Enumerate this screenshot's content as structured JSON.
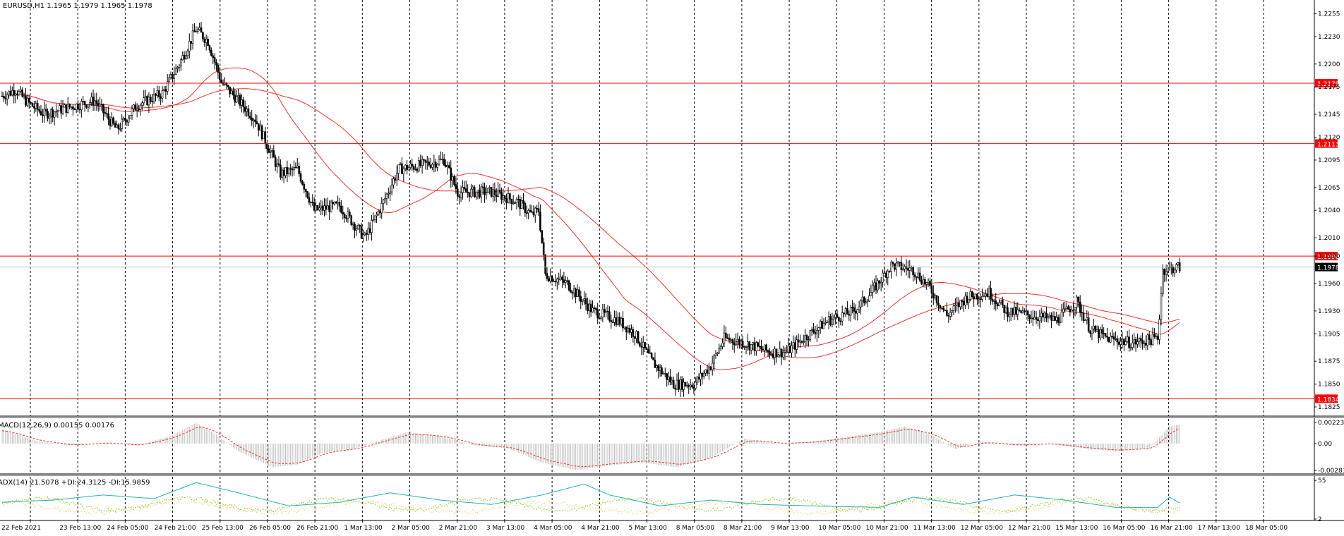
{
  "header": {
    "main": "EURUSD,H1  1.1965 1.1979 1.1965 1.1978",
    "macd": "MACD(12,26,9) 0.00155 0.00176",
    "adx": "ADX(14) 21.5078 +DI:24.3125 -DI:15.9859"
  },
  "colors": {
    "background": "#ffffff",
    "candle": "#000000",
    "level_line": "#ff0000",
    "ma": "#e8342e",
    "macd_hist": "#c0c0c0",
    "macd_signal": "#e8342e",
    "adx": "#20b2aa",
    "plus_di": "#9acd32",
    "minus_di": "#f0c040",
    "grid": "#000000",
    "axis": "#000000"
  },
  "chart_data": [
    {
      "type": "candlestick",
      "symbol": "EURUSD",
      "timeframe": "H1",
      "ylim": [
        1.1815,
        1.227
      ],
      "yticks": [
        "1.2255",
        "1.2230",
        "1.2200",
        "1.2175",
        "1.2145",
        "1.2120",
        "1.2095",
        "1.2065",
        "1.2040",
        "1.2010",
        "1.1990",
        "1.1960",
        "1.1930",
        "1.1905",
        "1.1875",
        "1.1850",
        "1.1825"
      ],
      "x_labels": [
        "22 Feb 2021",
        "23 Feb 13:00",
        "24 Feb 05:00",
        "24 Feb 21:00",
        "25 Feb 13:00",
        "26 Feb 05:00",
        "26 Feb 21:00",
        "1 Mar 13:00",
        "2 Mar 05:00",
        "2 Mar 21:00",
        "3 Mar 13:00",
        "4 Mar 05:00",
        "4 Mar 21:00",
        "5 Mar 13:00",
        "8 Mar 05:00",
        "8 Mar 21:00",
        "9 Mar 13:00",
        "10 Mar 05:00",
        "10 Mar 21:00",
        "11 Mar 13:00",
        "12 Mar 05:00",
        "12 Mar 21:00",
        "15 Mar 13:00",
        "16 Mar 05:00",
        "16 Mar 21:00",
        "17 Mar 13:00",
        "18 Mar 05:00"
      ],
      "price_anchors": [
        [
          0,
          1.2165
        ],
        [
          8,
          1.2172
        ],
        [
          15,
          1.2158
        ],
        [
          25,
          1.2145
        ],
        [
          40,
          1.2153
        ],
        [
          55,
          1.216
        ],
        [
          68,
          1.2128
        ],
        [
          80,
          1.2155
        ],
        [
          95,
          1.2168
        ],
        [
          105,
          1.22
        ],
        [
          115,
          1.2238
        ],
        [
          122,
          1.2225
        ],
        [
          130,
          1.218
        ],
        [
          140,
          1.216
        ],
        [
          150,
          1.214
        ],
        [
          165,
          1.208
        ],
        [
          175,
          1.2085
        ],
        [
          185,
          1.204
        ],
        [
          200,
          1.2045
        ],
        [
          215,
          1.201
        ],
        [
          225,
          1.2045
        ],
        [
          235,
          1.2085
        ],
        [
          250,
          1.209
        ],
        [
          262,
          1.2095
        ],
        [
          270,
          1.206
        ],
        [
          290,
          1.206
        ],
        [
          305,
          1.205
        ],
        [
          314,
          1.2035
        ],
        [
          318,
          1.204
        ],
        [
          322,
          1.197
        ],
        [
          335,
          1.196
        ],
        [
          350,
          1.193
        ],
        [
          365,
          1.192
        ],
        [
          375,
          1.1905
        ],
        [
          385,
          1.1875
        ],
        [
          398,
          1.185
        ],
        [
          410,
          1.185
        ],
        [
          420,
          1.187
        ],
        [
          428,
          1.19
        ],
        [
          440,
          1.1895
        ],
        [
          455,
          1.1885
        ],
        [
          465,
          1.1885
        ],
        [
          475,
          1.19
        ],
        [
          490,
          1.192
        ],
        [
          505,
          1.193
        ],
        [
          515,
          1.195
        ],
        [
          527,
          1.198
        ],
        [
          540,
          1.1975
        ],
        [
          550,
          1.1955
        ],
        [
          560,
          1.1925
        ],
        [
          572,
          1.1945
        ],
        [
          585,
          1.195
        ],
        [
          595,
          1.193
        ],
        [
          610,
          1.1925
        ],
        [
          625,
          1.192
        ],
        [
          637,
          1.194
        ],
        [
          645,
          1.191
        ],
        [
          655,
          1.19
        ],
        [
          670,
          1.1895
        ],
        [
          685,
          1.19
        ],
        [
          688,
          1.1975
        ],
        [
          698,
          1.1978
        ]
      ],
      "horizontal_levels": [
        {
          "price": 1.2179,
          "label": "1.2179"
        },
        {
          "price": 1.2113,
          "label": "1.2113"
        },
        {
          "price": 1.199,
          "label": "1.1990"
        },
        {
          "price": 1.1834,
          "label": "1.1834"
        }
      ],
      "current_price": {
        "price": 1.1978,
        "label": "1.1978"
      },
      "moving_averages": [
        {
          "period": 50,
          "color": "#e8342e"
        },
        {
          "period": 100,
          "color": "#e8342e"
        }
      ]
    },
    {
      "type": "macd",
      "title": "MACD(12,26,9) 0.00155 0.00176",
      "yticks": [
        "0.00223",
        "0.00",
        "-0.00283"
      ],
      "ylim": [
        -0.0032,
        0.0026
      ],
      "anchors": [
        [
          0,
          0.0015
        ],
        [
          20,
          0.0003
        ],
        [
          40,
          -0.0002
        ],
        [
          60,
          0.0001
        ],
        [
          80,
          -0.0002
        ],
        [
          100,
          0.0008
        ],
        [
          115,
          0.0022
        ],
        [
          125,
          0.0012
        ],
        [
          140,
          -0.0008
        ],
        [
          160,
          -0.0025
        ],
        [
          175,
          -0.0022
        ],
        [
          190,
          -0.001
        ],
        [
          210,
          -0.0005
        ],
        [
          225,
          0.0004
        ],
        [
          240,
          0.0012
        ],
        [
          260,
          0.0008
        ],
        [
          280,
          -0.0002
        ],
        [
          300,
          -0.0005
        ],
        [
          320,
          -0.002
        ],
        [
          340,
          -0.0028
        ],
        [
          360,
          -0.0023
        ],
        [
          380,
          -0.002
        ],
        [
          400,
          -0.0025
        ],
        [
          420,
          -0.0015
        ],
        [
          440,
          0.0005
        ],
        [
          460,
          0.0
        ],
        [
          480,
          0.0002
        ],
        [
          500,
          0.0007
        ],
        [
          520,
          0.0012
        ],
        [
          535,
          0.0018
        ],
        [
          550,
          0.001
        ],
        [
          565,
          -0.0006
        ],
        [
          580,
          0.0002
        ],
        [
          600,
          -0.0002
        ],
        [
          620,
          0.0
        ],
        [
          640,
          -0.0005
        ],
        [
          660,
          -0.0008
        ],
        [
          680,
          -0.0005
        ],
        [
          692,
          0.0018
        ],
        [
          698,
          0.002
        ]
      ]
    },
    {
      "type": "adx",
      "title": "ADX(14) 21.5078 +DI:24.3125 -DI:15.9859",
      "yticks": [
        "55",
        "2"
      ],
      "ylim": [
        0,
        60
      ],
      "anchors": [
        [
          0,
          25
        ],
        [
          30,
          28
        ],
        [
          60,
          35
        ],
        [
          90,
          30
        ],
        [
          115,
          52
        ],
        [
          140,
          38
        ],
        [
          170,
          20
        ],
        [
          200,
          25
        ],
        [
          230,
          38
        ],
        [
          260,
          28
        ],
        [
          290,
          22
        ],
        [
          320,
          35
        ],
        [
          345,
          50
        ],
        [
          360,
          35
        ],
        [
          390,
          20
        ],
        [
          420,
          28
        ],
        [
          450,
          22
        ],
        [
          480,
          20
        ],
        [
          520,
          18
        ],
        [
          540,
          32
        ],
        [
          570,
          22
        ],
        [
          600,
          35
        ],
        [
          630,
          28
        ],
        [
          660,
          18
        ],
        [
          685,
          18
        ],
        [
          692,
          32
        ],
        [
          698,
          24
        ]
      ]
    }
  ]
}
